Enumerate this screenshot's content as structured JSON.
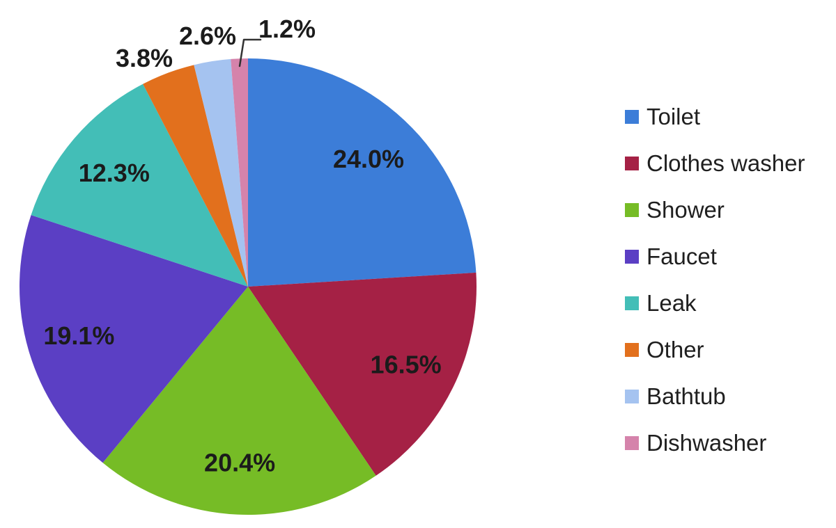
{
  "chart_data": {
    "type": "pie",
    "title": "",
    "categories": [
      "Toilet",
      "Clothes washer",
      "Shower",
      "Faucet",
      "Leak",
      "Other",
      "Bathtub",
      "Dishwasher"
    ],
    "values": [
      24.0,
      16.5,
      20.4,
      19.1,
      12.3,
      3.8,
      2.6,
      1.2
    ],
    "slice_labels": [
      "24.0%",
      "16.5%",
      "20.4%",
      "19.1%",
      "12.3%",
      "3.8%",
      "2.6%",
      "1.2%"
    ],
    "colors": [
      "#3C7DD8",
      "#A52145",
      "#76BC26",
      "#5B3FC4",
      "#43BEB7",
      "#E2701D",
      "#A5C3F0",
      "#D583AB"
    ],
    "label_color": "#1b1b1b",
    "legend_text_color": "#1f1f1f",
    "leader_line_color": "#333333",
    "background": "#ffffff",
    "legend_position": "right",
    "start_angle_deg": 0,
    "direction": "clockwise",
    "outside_label_threshold_pct": 5,
    "grid": false
  }
}
